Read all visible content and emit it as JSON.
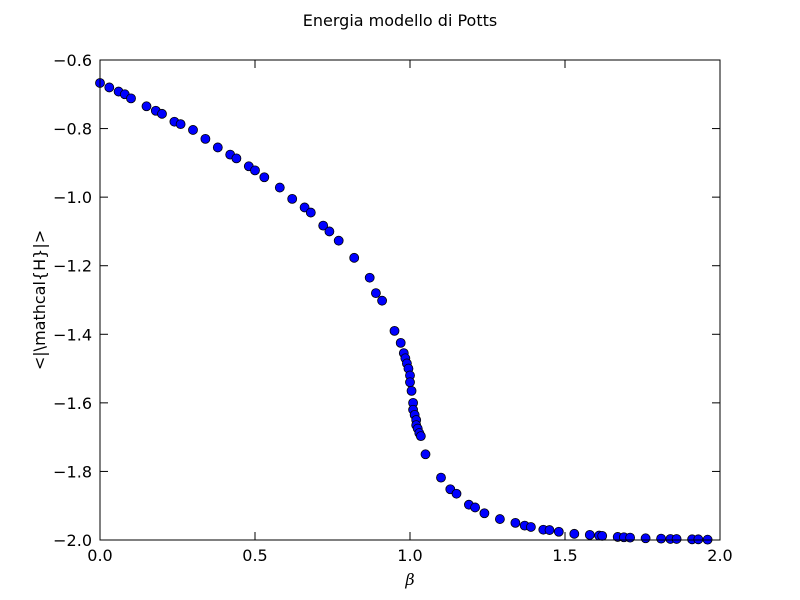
{
  "chart_data": {
    "type": "scatter",
    "title": "Energia modello di Potts",
    "xlabel": "β",
    "ylabel": "<|\\mathcal{H}|>",
    "xlim": [
      0.0,
      2.0
    ],
    "ylim": [
      -2.0,
      -0.6
    ],
    "xticks": [
      "0.0",
      "0.5",
      "1.0",
      "1.5",
      "2.0"
    ],
    "yticks": [
      "−0.6",
      "−0.8",
      "−1.0",
      "−1.2",
      "−1.4",
      "−1.6",
      "−1.8",
      "−2.0"
    ],
    "marker_color": "#0000ff",
    "marker_edge": "#000000",
    "grid": false,
    "legend": "none",
    "points": [
      [
        0.0,
        -0.667
      ],
      [
        0.03,
        -0.68
      ],
      [
        0.06,
        -0.692
      ],
      [
        0.08,
        -0.7
      ],
      [
        0.1,
        -0.712
      ],
      [
        0.15,
        -0.735
      ],
      [
        0.18,
        -0.748
      ],
      [
        0.2,
        -0.757
      ],
      [
        0.24,
        -0.78
      ],
      [
        0.26,
        -0.787
      ],
      [
        0.3,
        -0.804
      ],
      [
        0.34,
        -0.83
      ],
      [
        0.38,
        -0.855
      ],
      [
        0.42,
        -0.876
      ],
      [
        0.44,
        -0.887
      ],
      [
        0.48,
        -0.91
      ],
      [
        0.5,
        -0.922
      ],
      [
        0.53,
        -0.942
      ],
      [
        0.58,
        -0.972
      ],
      [
        0.62,
        -1.005
      ],
      [
        0.66,
        -1.03
      ],
      [
        0.68,
        -1.045
      ],
      [
        0.72,
        -1.083
      ],
      [
        0.74,
        -1.1
      ],
      [
        0.77,
        -1.127
      ],
      [
        0.82,
        -1.177
      ],
      [
        0.87,
        -1.235
      ],
      [
        0.89,
        -1.28
      ],
      [
        0.91,
        -1.302
      ],
      [
        0.95,
        -1.39
      ],
      [
        0.97,
        -1.425
      ],
      [
        0.98,
        -1.455
      ],
      [
        0.985,
        -1.47
      ],
      [
        0.99,
        -1.485
      ],
      [
        0.995,
        -1.5
      ],
      [
        1.0,
        -1.52
      ],
      [
        1.0,
        -1.54
      ],
      [
        1.005,
        -1.565
      ],
      [
        1.01,
        -1.6
      ],
      [
        1.01,
        -1.62
      ],
      [
        1.015,
        -1.635
      ],
      [
        1.02,
        -1.65
      ],
      [
        1.02,
        -1.665
      ],
      [
        1.025,
        -1.675
      ],
      [
        1.03,
        -1.688
      ],
      [
        1.035,
        -1.697
      ],
      [
        1.05,
        -1.75
      ],
      [
        1.1,
        -1.818
      ],
      [
        1.13,
        -1.852
      ],
      [
        1.15,
        -1.865
      ],
      [
        1.19,
        -1.897
      ],
      [
        1.21,
        -1.905
      ],
      [
        1.24,
        -1.922
      ],
      [
        1.29,
        -1.939
      ],
      [
        1.34,
        -1.95
      ],
      [
        1.37,
        -1.958
      ],
      [
        1.39,
        -1.962
      ],
      [
        1.43,
        -1.97
      ],
      [
        1.45,
        -1.971
      ],
      [
        1.48,
        -1.976
      ],
      [
        1.53,
        -1.982
      ],
      [
        1.58,
        -1.985
      ],
      [
        1.61,
        -1.987
      ],
      [
        1.62,
        -1.988
      ],
      [
        1.67,
        -1.991
      ],
      [
        1.69,
        -1.992
      ],
      [
        1.71,
        -1.993
      ],
      [
        1.76,
        -1.995
      ],
      [
        1.81,
        -1.996
      ],
      [
        1.84,
        -1.997
      ],
      [
        1.86,
        -1.997
      ],
      [
        1.91,
        -1.998
      ],
      [
        1.93,
        -1.998
      ],
      [
        1.96,
        -1.999
      ]
    ]
  }
}
